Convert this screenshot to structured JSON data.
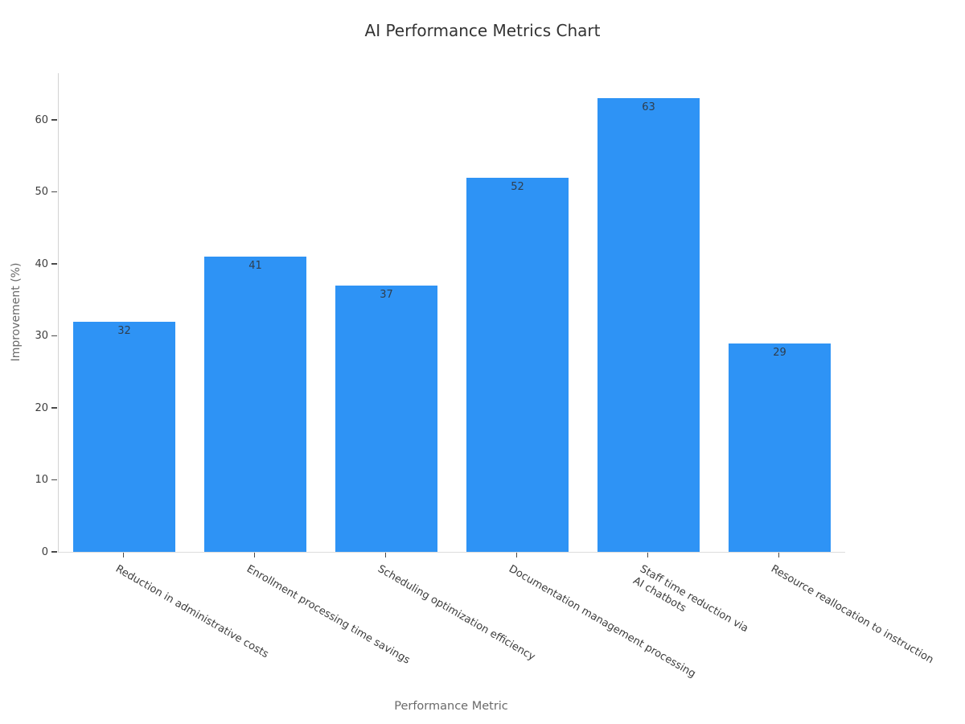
{
  "chart_data": {
    "type": "bar",
    "title": "AI Performance Metrics Chart",
    "xlabel": "Performance Metric",
    "ylabel": "Improvement (%)",
    "categories": [
      "Reduction in administrative costs",
      "Enrollment processing time savings",
      "Scheduling optimization efficiency",
      "Documentation management processing",
      "Staff time reduction via\nAI chatbots",
      "Resource reallocation to instruction"
    ],
    "values": [
      32,
      41,
      37,
      52,
      63,
      29
    ],
    "yticks": [
      0,
      10,
      20,
      30,
      40,
      50,
      60
    ],
    "ylim": [
      0,
      66.5
    ],
    "grid": false,
    "legend_position": "none",
    "bar_color": "#2E93F5",
    "bar_label_color": "#2f3e4e",
    "tick_label_color": "#3d3d3d",
    "axis_label_color": "#6a6a6a",
    "title_color": "#333333",
    "xtick_rotation_deg": 30
  }
}
